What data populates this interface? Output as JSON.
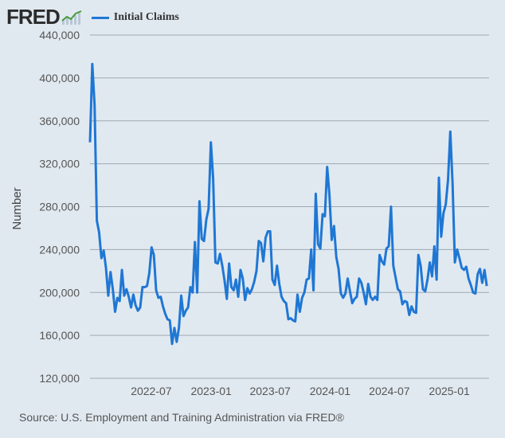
{
  "header": {
    "logo_text": "FRED",
    "legend_label": "Initial Claims",
    "line_color": "#1f77d4"
  },
  "source_text": "Source: U.S. Employment and Training Administration via FRED®",
  "chart_data": {
    "type": "line",
    "ylabel": "Number",
    "xlabel": "",
    "ylim": [
      120000,
      440000
    ],
    "yticks": [
      120000,
      160000,
      200000,
      240000,
      280000,
      320000,
      360000,
      400000,
      440000
    ],
    "ytick_labels": [
      "120,000",
      "160,000",
      "200,000",
      "240,000",
      "280,000",
      "320,000",
      "360,000",
      "400,000",
      "440,000"
    ],
    "xlim": [
      "2021-12-25",
      "2025-05-03"
    ],
    "xticks": [
      "2022-07-01",
      "2023-01-01",
      "2023-07-01",
      "2024-01-01",
      "2024-07-01",
      "2025-01-01"
    ],
    "xtick_labels": [
      "2022-07",
      "2023-01",
      "2023-07",
      "2024-01",
      "2024-07",
      "2025-01"
    ],
    "grid": "horizontal",
    "series": [
      {
        "name": "Initial Claims",
        "color": "#1f77d4",
        "start_date": "2021-12-25",
        "interval_days": 7,
        "values": [
          340000,
          413000,
          375000,
          267000,
          256000,
          232000,
          239000,
          223000,
          197000,
          219000,
          203000,
          182000,
          195000,
          192000,
          221000,
          197000,
          203000,
          196000,
          186000,
          198000,
          188000,
          183000,
          186000,
          205000,
          205000,
          206000,
          218000,
          242000,
          235000,
          202000,
          195000,
          196000,
          187000,
          180000,
          175000,
          174000,
          152000,
          167000,
          154000,
          167000,
          197000,
          178000,
          183000,
          186000,
          205000,
          200000,
          247000,
          200000,
          285000,
          250000,
          248000,
          268000,
          278000,
          340000,
          306000,
          228000,
          227000,
          236000,
          225000,
          211000,
          194000,
          227000,
          205000,
          202000,
          212000,
          196000,
          221000,
          213000,
          193000,
          204000,
          199000,
          203000,
          210000,
          220000,
          248000,
          246000,
          229000,
          251000,
          257000,
          257000,
          212000,
          207000,
          225000,
          208000,
          196000,
          192000,
          190000,
          175000,
          176000,
          174000,
          173000,
          198000,
          182000,
          195000,
          200000,
          212000,
          213000,
          240000,
          202000,
          292000,
          245000,
          241000,
          273000,
          271000,
          317000,
          291000,
          249000,
          262000,
          233000,
          222000,
          199000,
          195000,
          199000,
          213000,
          201000,
          190000,
          194000,
          196000,
          213000,
          209000,
          200000,
          189000,
          208000,
          196000,
          193000,
          196000,
          193000,
          235000,
          229000,
          226000,
          241000,
          243000,
          280000,
          225000,
          214000,
          203000,
          201000,
          189000,
          192000,
          191000,
          179000,
          187000,
          182000,
          181000,
          235000,
          225000,
          203000,
          201000,
          212000,
          228000,
          215000,
          243000,
          212000,
          307000,
          252000,
          274000,
          282000,
          305000,
          350000,
          301000,
          228000,
          240000,
          232000,
          223000,
          221000,
          224000,
          213000,
          207000,
          200000,
          199000,
          217000,
          222000,
          209000,
          221000,
          206000
        ]
      }
    ]
  }
}
